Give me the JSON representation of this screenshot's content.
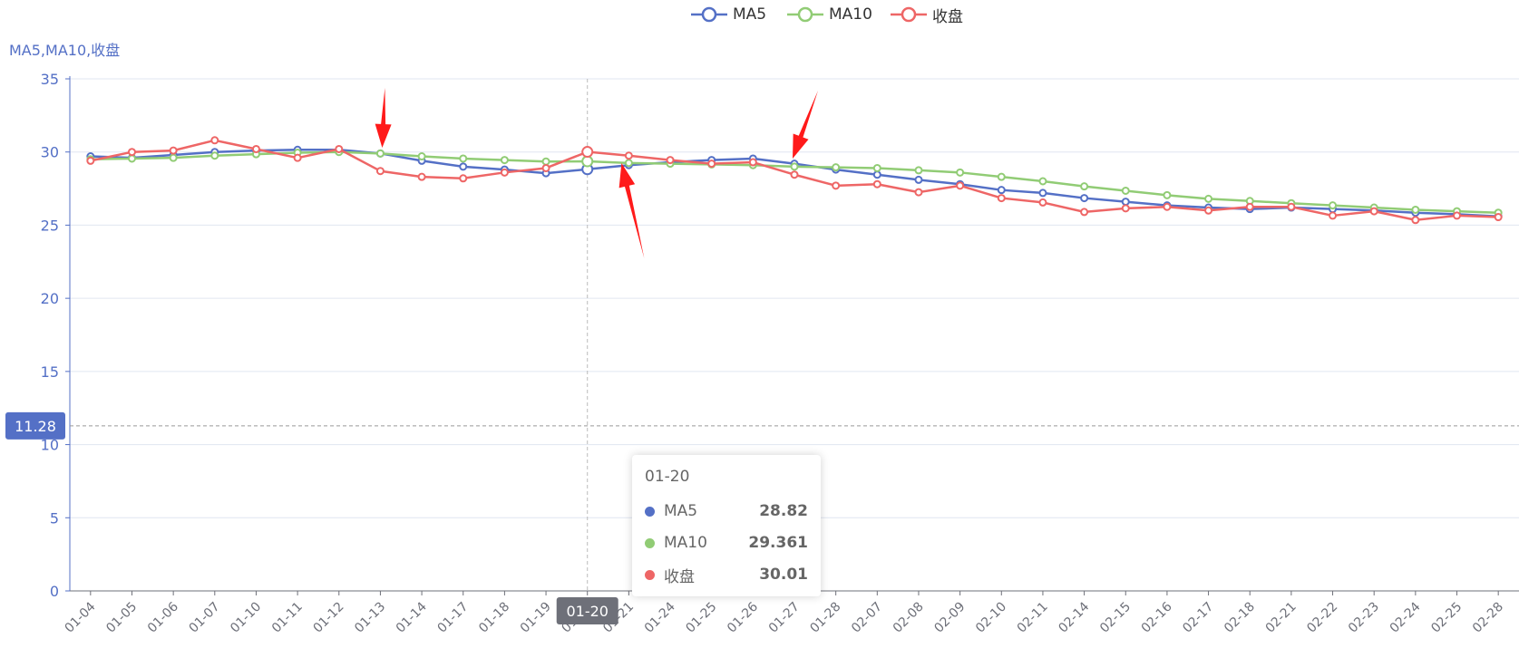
{
  "chart_data": {
    "type": "line",
    "ylabel": "MA5,MA10,收盘",
    "ylim": [
      0,
      35
    ],
    "yticks": [
      "0",
      "5",
      "10",
      "15",
      "20",
      "25",
      "30",
      "35"
    ],
    "categories": [
      "01-04",
      "01-05",
      "01-06",
      "01-07",
      "01-10",
      "01-11",
      "01-12",
      "01-13",
      "01-14",
      "01-17",
      "01-18",
      "01-19",
      "01-20",
      "01-21",
      "01-24",
      "01-25",
      "01-26",
      "01-27",
      "01-28",
      "02-07",
      "02-08",
      "02-09",
      "02-10",
      "02-11",
      "02-14",
      "02-15",
      "02-16",
      "02-17",
      "02-18",
      "02-21",
      "02-22",
      "02-23",
      "02-24",
      "02-25",
      "02-28"
    ],
    "series": [
      {
        "name": "MA5",
        "color": "#5470c6",
        "values": [
          29.7,
          29.6,
          29.8,
          30.0,
          30.1,
          30.15,
          30.15,
          29.9,
          29.4,
          29.0,
          28.8,
          28.55,
          28.82,
          29.1,
          29.3,
          29.45,
          29.55,
          29.2,
          28.8,
          28.45,
          28.1,
          27.8,
          27.4,
          27.2,
          26.85,
          26.6,
          26.35,
          26.2,
          26.1,
          26.2,
          26.1,
          26.0,
          25.85,
          25.75,
          25.6
        ]
      },
      {
        "name": "MA10",
        "color": "#91cc75",
        "values": [
          29.5,
          29.55,
          29.6,
          29.75,
          29.85,
          29.95,
          30.0,
          29.9,
          29.7,
          29.55,
          29.45,
          29.35,
          29.361,
          29.25,
          29.2,
          29.15,
          29.1,
          29.0,
          28.95,
          28.9,
          28.75,
          28.6,
          28.3,
          28.0,
          27.65,
          27.35,
          27.05,
          26.8,
          26.65,
          26.5,
          26.35,
          26.2,
          26.05,
          25.95,
          25.85
        ]
      },
      {
        "name": "收盘",
        "color": "#ee6666",
        "values": [
          29.4,
          30.0,
          30.1,
          30.8,
          30.2,
          29.6,
          30.2,
          28.7,
          28.3,
          28.2,
          28.6,
          28.9,
          30.01,
          29.75,
          29.45,
          29.2,
          29.3,
          28.45,
          27.7,
          27.8,
          27.25,
          27.7,
          26.85,
          26.55,
          25.9,
          26.15,
          26.25,
          26.0,
          26.25,
          26.25,
          25.65,
          25.95,
          25.35,
          25.65,
          25.55
        ]
      }
    ],
    "legend_position": "top-center",
    "grid": "horizontal",
    "crosshair": {
      "x_label": "01-20",
      "y_label": "11.28",
      "y_value": 11.28
    },
    "tooltip": {
      "title": "01-20",
      "rows": [
        {
          "name": "MA5",
          "value": "28.82"
        },
        {
          "name": "MA10",
          "value": "29.361"
        },
        {
          "name": "收盘",
          "value": "30.01"
        }
      ]
    },
    "annotations": [
      {
        "type": "arrow",
        "color": "#ff1a1a",
        "category": "01-13",
        "direction": "down"
      },
      {
        "type": "arrow",
        "color": "#ff1a1a",
        "category": "01-27",
        "direction": "down"
      },
      {
        "type": "arrow",
        "color": "#ff1a1a",
        "category": "01-21",
        "direction": "up"
      }
    ]
  }
}
